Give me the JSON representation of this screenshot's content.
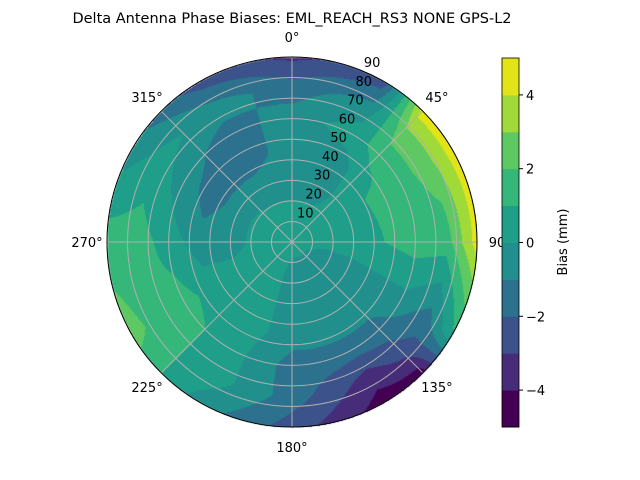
{
  "chart_data": {
    "type": "heatmap",
    "subtype": "polar-contour",
    "title": "Delta Antenna Phase Biases: EML_REACH_RS3   NONE GPS-L2",
    "angular_axis": {
      "direction": "clockwise",
      "zero_location": "top",
      "tick_labels": [
        "0°",
        "45°",
        "90",
        "135°",
        "180°",
        "225°",
        "270°",
        "315°"
      ],
      "tick_values": [
        0,
        45,
        90,
        135,
        180,
        225,
        270,
        315
      ]
    },
    "radial_axis": {
      "range": [
        0,
        90
      ],
      "tick_values": [
        10,
        20,
        30,
        40,
        50,
        60,
        70,
        80,
        90
      ],
      "tick_labels": [
        "10",
        "20",
        "30",
        "40",
        "50",
        "60",
        "70",
        "80",
        "90"
      ]
    },
    "grid": true,
    "colorbar": {
      "label": "Bias (mm)",
      "range": [
        -5,
        5
      ],
      "levels": [
        -5,
        -4,
        -3,
        -2,
        -1,
        0,
        1,
        2,
        3,
        4,
        5
      ],
      "tick_values": [
        -4,
        -2,
        0,
        2,
        4
      ],
      "tick_labels": [
        "−4",
        "−2",
        "0",
        "2",
        "4"
      ],
      "colormap": "viridis",
      "colors": [
        "#440154",
        "#472c7a",
        "#3b528b",
        "#2c728e",
        "#21908d",
        "#1f9e89",
        "#35b779",
        "#5ec962",
        "#a0da39",
        "#e2e418"
      ],
      "placement": "right"
    },
    "grid_values": {
      "azimuth": [
        0,
        30,
        45,
        60,
        90,
        120,
        135,
        150,
        180,
        210,
        240,
        270,
        300,
        330
      ],
      "zenith": [
        0,
        15,
        30,
        45,
        60,
        75,
        90
      ],
      "bias_mm": [
        [
          0.5,
          0.3,
          -0.5,
          -0.5,
          -0.5,
          -1.5,
          -3.2
        ],
        [
          0.5,
          0.3,
          -0.5,
          -0.5,
          0.5,
          -0.5,
          -2.5
        ],
        [
          0.5,
          0.3,
          0.3,
          0.5,
          1.5,
          2.5,
          4.5
        ],
        [
          0.5,
          0.3,
          0.5,
          1.2,
          1.5,
          2.5,
          4.5
        ],
        [
          0.5,
          0.3,
          0.5,
          1.0,
          1.5,
          1.5,
          4.5
        ],
        [
          0.5,
          -0.5,
          -0.5,
          -0.5,
          -0.5,
          -1.5,
          1.0
        ],
        [
          0.5,
          -0.5,
          -0.5,
          -0.5,
          -1.5,
          -2.5,
          -4.5
        ],
        [
          0.5,
          -0.5,
          -0.5,
          -0.5,
          -1.5,
          -3.5,
          -4.5
        ],
        [
          0.5,
          -0.5,
          -0.5,
          -0.5,
          -1.5,
          -1.5,
          -2.5
        ],
        [
          0.5,
          0.5,
          0.5,
          0.5,
          0.5,
          0.5,
          -0.5
        ],
        [
          0.5,
          0.5,
          0.5,
          0.5,
          1.5,
          1.5,
          2.5
        ],
        [
          0.5,
          0.5,
          -0.5,
          -0.5,
          0.5,
          1.5,
          1.5
        ],
        [
          0.5,
          0.5,
          -0.5,
          -1.5,
          -0.5,
          0.5,
          -0.5
        ],
        [
          0.5,
          0.3,
          -0.5,
          -1.5,
          -1.5,
          -0.5,
          -2.5
        ]
      ]
    }
  }
}
